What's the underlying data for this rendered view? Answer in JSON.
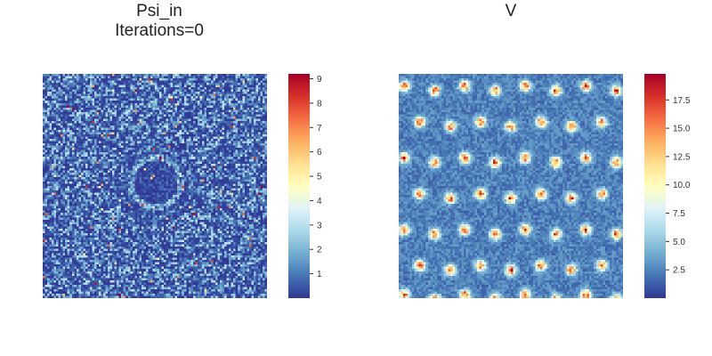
{
  "chart_data": [
    {
      "type": "heatmap",
      "title": "Psi_in",
      "subtitle": "Iterations=0",
      "grid_size": [
        100,
        100
      ],
      "colormap": "RdYlBu_r",
      "color_range": [
        0,
        9.2
      ],
      "colorbar_ticks": [
        "1",
        "2",
        "3",
        "4",
        "5",
        "6",
        "7",
        "8",
        "9"
      ],
      "colorbar_tick_values": [
        1,
        2,
        3,
        4,
        5,
        6,
        7,
        8,
        9
      ],
      "features": "speckle noise with ring-shaped structure near center"
    },
    {
      "type": "heatmap",
      "title": "V",
      "grid_size": [
        100,
        100
      ],
      "colormap": "RdYlBu_r",
      "color_range": [
        0,
        19.8
      ],
      "colorbar_ticks": [
        "2.5",
        "5.0",
        "7.5",
        "10.0",
        "12.5",
        "15.0",
        "17.5"
      ],
      "colorbar_tick_values": [
        2.5,
        5.0,
        7.5,
        10.0,
        12.5,
        15.0,
        17.5
      ],
      "features": "lattice of bright spots"
    }
  ]
}
